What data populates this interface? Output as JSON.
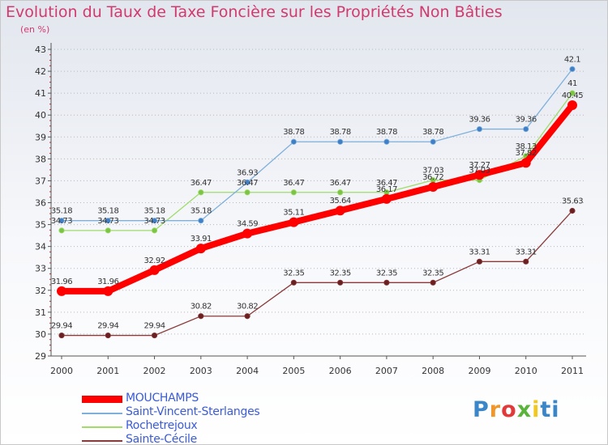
{
  "chart_data": {
    "type": "line",
    "title": "Evolution du Taux de Taxe Foncière sur les Propriétés Non Bâties",
    "unit": "(en %)",
    "x": [
      "2000",
      "2001",
      "2002",
      "2003",
      "2004",
      "2005",
      "2006",
      "2007",
      "2008",
      "2009",
      "2010",
      "2011"
    ],
    "ylim": [
      29,
      43
    ],
    "yticks": [
      "29",
      "30",
      "31",
      "32",
      "33",
      "34",
      "35",
      "36",
      "37",
      "38",
      "39",
      "40",
      "41",
      "42",
      "43"
    ],
    "grid": "dotted-horizontal",
    "legend_position": "bottom-left",
    "series": [
      {
        "name": "MOUCHAMPS",
        "color": "#ff0000",
        "bold": true,
        "values": [
          31.96,
          31.96,
          32.92,
          33.91,
          34.59,
          35.11,
          35.64,
          36.17,
          36.72,
          37.27,
          37.82,
          40.45
        ],
        "labels": [
          "31.96",
          "31.96",
          "32.92",
          "33.91",
          "34.59",
          "35.11",
          "35.64",
          "36.17",
          "36.72",
          "37.27",
          "37.82",
          "40.45"
        ]
      },
      {
        "name": "Saint-Vincent-Sterlanges",
        "color": "#7fb0dc",
        "marker_color": "#3f7fc6",
        "values": [
          35.18,
          35.18,
          35.18,
          35.18,
          36.93,
          38.78,
          38.78,
          38.78,
          38.78,
          39.36,
          39.36,
          42.1
        ],
        "labels": [
          "35.18",
          "35.18",
          "35.18",
          "35.18",
          "36.93",
          "38.78",
          "38.78",
          "38.78",
          "38.78",
          "39.36",
          "39.36",
          "42.1"
        ]
      },
      {
        "name": "Rochetrejoux",
        "color": "#9fdc6a",
        "marker_color": "#7cc444",
        "values": [
          34.73,
          34.73,
          34.73,
          36.47,
          36.47,
          36.47,
          36.47,
          36.47,
          37.03,
          37.03,
          38.13,
          41
        ],
        "labels": [
          "34.73",
          "34.73",
          "34.73",
          "36.47",
          "36.47",
          "36.47",
          "36.47",
          "36.47",
          "37.03",
          "37.03",
          "38.13",
          "41"
        ]
      },
      {
        "name": "Sainte-Cécile",
        "color": "#8a3a3a",
        "marker_color": "#6a2020",
        "values": [
          29.94,
          29.94,
          29.94,
          30.82,
          30.82,
          32.35,
          32.35,
          32.35,
          32.35,
          33.31,
          33.31,
          35.63
        ],
        "labels": [
          "29.94",
          "29.94",
          "29.94",
          "30.82",
          "30.82",
          "32.35",
          "32.35",
          "32.35",
          "32.35",
          "33.31",
          "33.31",
          "35.63"
        ]
      }
    ]
  },
  "logo": {
    "parts": [
      "P",
      "r",
      "o",
      "x",
      "i",
      "ti"
    ]
  }
}
